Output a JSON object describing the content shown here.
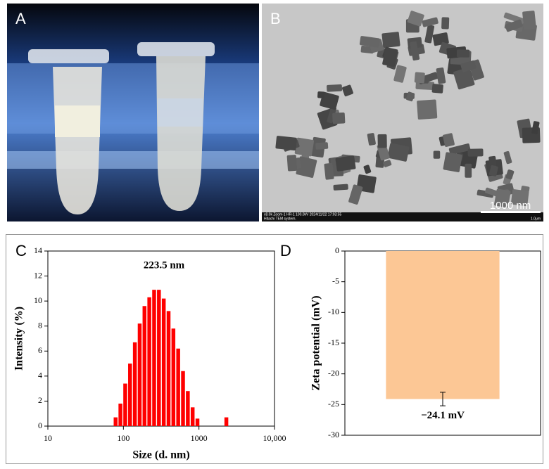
{
  "images": {
    "a": {
      "label": "A"
    },
    "b": {
      "label": "B",
      "scale_bar": "1000 nm",
      "info_left": "x8.0k Zoom-1 HR-1 100.0kV 2024/11/22 17:03:55",
      "info_left2": "Hitachi TEM system.",
      "info_right": "1.0μm"
    }
  },
  "chart_data": [
    {
      "type": "bar",
      "label": "C",
      "annotation": "223.5 nm",
      "x_label": "Size (d. nm)",
      "y_label": "Intensity (%)",
      "color": "#ff0000",
      "log_x": true,
      "x": [
        78.82,
        91.28,
        105.7,
        122.4,
        141.8,
        164.2,
        190.1,
        220.2,
        255.0,
        295.3,
        342.0,
        396.1,
        458.7,
        531.2,
        615.1,
        712.4,
        825.0,
        955.4,
        2305
      ],
      "values": [
        0.7,
        1.8,
        3.4,
        5.0,
        6.7,
        8.2,
        9.6,
        10.3,
        10.9,
        10.9,
        10.2,
        9.2,
        7.8,
        6.2,
        4.4,
        2.8,
        1.5,
        0.6,
        0.7
      ],
      "xlim": [
        10,
        10000
      ],
      "xticks": [
        10,
        100,
        1000,
        {
          "value": 10000,
          "label": "10,000"
        }
      ],
      "ylim": [
        0,
        14
      ],
      "yticks": [
        0,
        2,
        4,
        6,
        8,
        10,
        12,
        14
      ]
    },
    {
      "type": "bar",
      "label": "D",
      "y_label": "Zeta potential (mV)",
      "color": "#fcc795",
      "categories": [
        null
      ],
      "values": [
        -24.1
      ],
      "errors": [
        1.1
      ],
      "value_labels": [
        "−24.1 mV"
      ],
      "ylim": [
        -30,
        0
      ],
      "yticks": [
        0,
        -5,
        -10,
        -15,
        -20,
        -25,
        -30
      ]
    }
  ]
}
